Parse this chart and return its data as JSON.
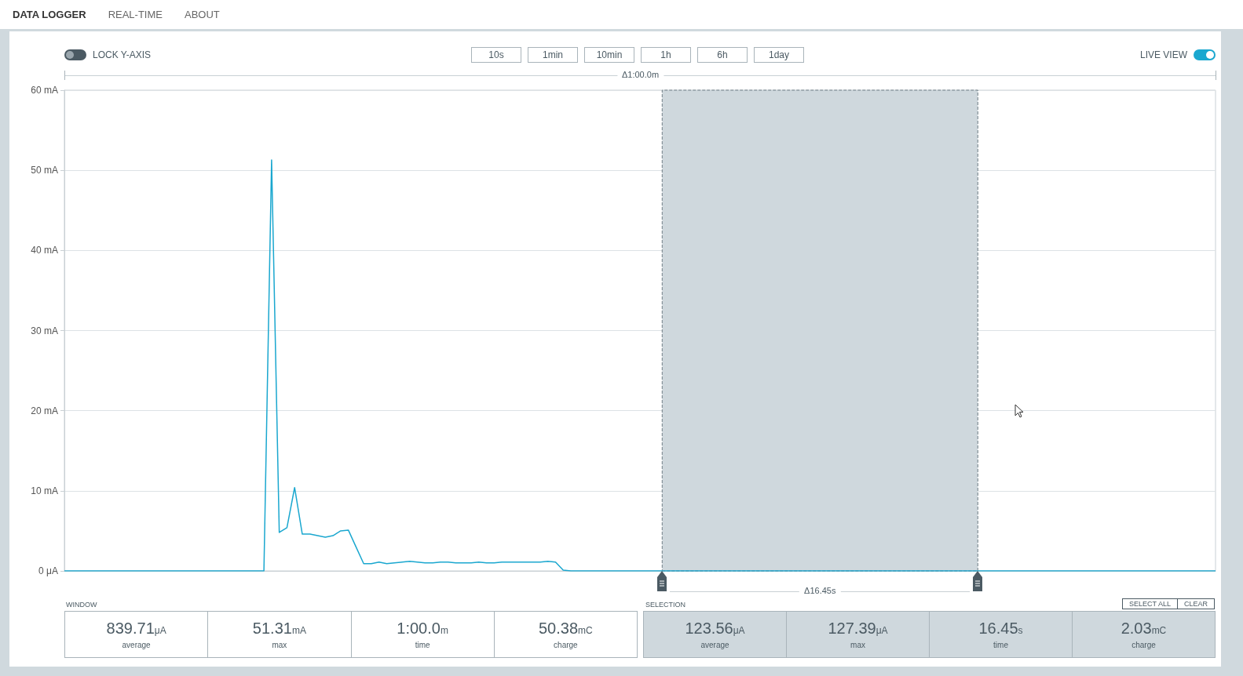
{
  "chart_data": {
    "type": "line",
    "annotations": [
      "DATA LOGGER",
      "REAL-TIME",
      "ABOUT",
      "LOCK Y-AXIS",
      "10s",
      "1min",
      "10min",
      "1h",
      "6h",
      "1day",
      "LIVE VIEW",
      "Δ1:00.0m",
      "WINDOW",
      "SELECTION",
      "SELECT ALL",
      "CLEAR",
      "839.71μA",
      "average",
      "51.31mA",
      "max",
      "1:00.0m",
      "time",
      "50.38mC",
      "charge",
      "123.56μA",
      "average",
      "127.39μA",
      "max",
      "16.45s",
      "time",
      "2.03mC",
      "charge",
      "Δ16.45s"
    ],
    "categories": [
      null,
      null,
      null,
      null,
      null,
      null,
      null,
      null,
      null,
      null,
      null,
      null,
      null,
      null,
      null,
      null,
      null,
      null,
      null,
      null,
      null,
      null,
      null,
      null,
      null,
      null,
      null,
      null,
      null,
      null,
      null,
      null,
      null,
      null,
      null,
      null,
      null,
      null,
      null,
      null,
      null,
      null,
      null,
      null,
      null,
      null,
      null,
      null,
      null,
      null,
      null,
      null,
      null,
      null,
      null,
      null,
      null,
      null,
      null,
      null,
      null,
      null,
      null,
      null,
      null,
      null,
      null,
      null,
      null,
      null,
      null,
      null,
      null,
      null,
      null,
      null,
      null,
      null,
      null,
      null,
      null,
      null,
      null,
      null,
      null,
      null,
      null,
      null,
      null,
      null,
      null,
      null,
      null,
      null,
      null,
      null,
      null,
      null,
      null,
      null,
      null,
      null,
      null,
      null,
      null,
      null,
      null,
      null,
      null,
      null,
      null,
      null,
      null,
      null,
      null,
      null,
      null,
      null,
      null,
      null,
      null,
      null,
      null,
      null,
      null,
      null,
      null,
      null,
      null,
      null,
      null,
      null,
      null,
      null,
      null,
      null,
      null,
      null,
      null,
      null,
      null,
      null,
      null,
      null,
      null,
      null,
      null,
      null,
      null,
      null,
      null
    ],
    "series": [
      {
        "color": "#1aa7cf",
        "values": [
          0,
          0,
          0,
          0,
          0,
          0,
          0,
          0,
          0,
          0,
          0,
          0,
          0,
          0,
          0,
          0,
          0,
          0,
          0,
          0,
          0,
          0,
          0,
          0,
          0,
          0,
          0,
          51.3,
          4.8,
          5.4,
          10.4,
          4.6,
          4.6,
          4.4,
          4.2,
          4.4,
          5.0,
          5.1,
          3.0,
          0.9,
          0.9,
          1.1,
          0.9,
          1.0,
          1.1,
          1.2,
          1.1,
          1.0,
          1.0,
          1.1,
          1.1,
          1.0,
          1.0,
          1.0,
          1.1,
          1.0,
          1.0,
          1.1,
          1.1,
          1.1,
          1.1,
          1.1,
          1.1,
          1.2,
          1.1,
          0.1,
          0,
          0,
          0,
          0,
          0,
          0,
          0,
          0,
          0,
          0,
          0,
          0,
          0,
          0,
          0,
          0,
          0,
          0,
          0,
          0,
          0,
          0,
          0,
          0,
          0,
          0,
          0,
          0,
          0,
          0,
          0,
          0,
          0,
          0,
          0,
          0,
          0,
          0,
          0,
          0,
          0,
          0,
          0,
          0,
          0,
          0,
          0,
          0,
          0,
          0,
          0,
          0,
          0,
          0,
          0,
          0,
          0,
          0,
          0,
          0,
          0,
          0,
          0,
          0,
          0,
          0,
          0,
          0,
          0,
          0,
          0,
          0,
          0,
          0,
          0,
          0,
          0,
          0,
          0,
          0,
          0,
          0,
          0,
          0,
          0
        ]
      }
    ],
    "ylim": [
      0,
      60
    ],
    "yticks": [
      {
        "value": 0,
        "label": "0 μA"
      },
      {
        "value": 10,
        "label": "10 mA"
      },
      {
        "value": 20,
        "label": "20 mA"
      },
      {
        "value": 30,
        "label": "30 mA"
      },
      {
        "value": 40,
        "label": "40 mA"
      },
      {
        "value": 50,
        "label": "50 mA"
      },
      {
        "value": 60,
        "label": "60 mA"
      }
    ],
    "tick_labels": "y",
    "grid": "y"
  }
}
